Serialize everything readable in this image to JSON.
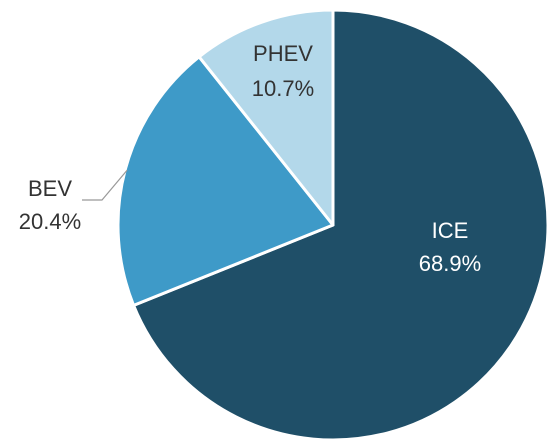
{
  "chart_data": {
    "type": "pie",
    "categories": [
      "ICE",
      "BEV",
      "PHEV"
    ],
    "values": [
      68.9,
      20.4,
      10.7
    ],
    "value_labels": [
      "68.9%",
      "20.4%",
      "10.7%"
    ],
    "colors": [
      "#1f4f68",
      "#3e9ac8",
      "#b3d8ea"
    ],
    "start_angle": 0,
    "direction": "clockwise"
  }
}
